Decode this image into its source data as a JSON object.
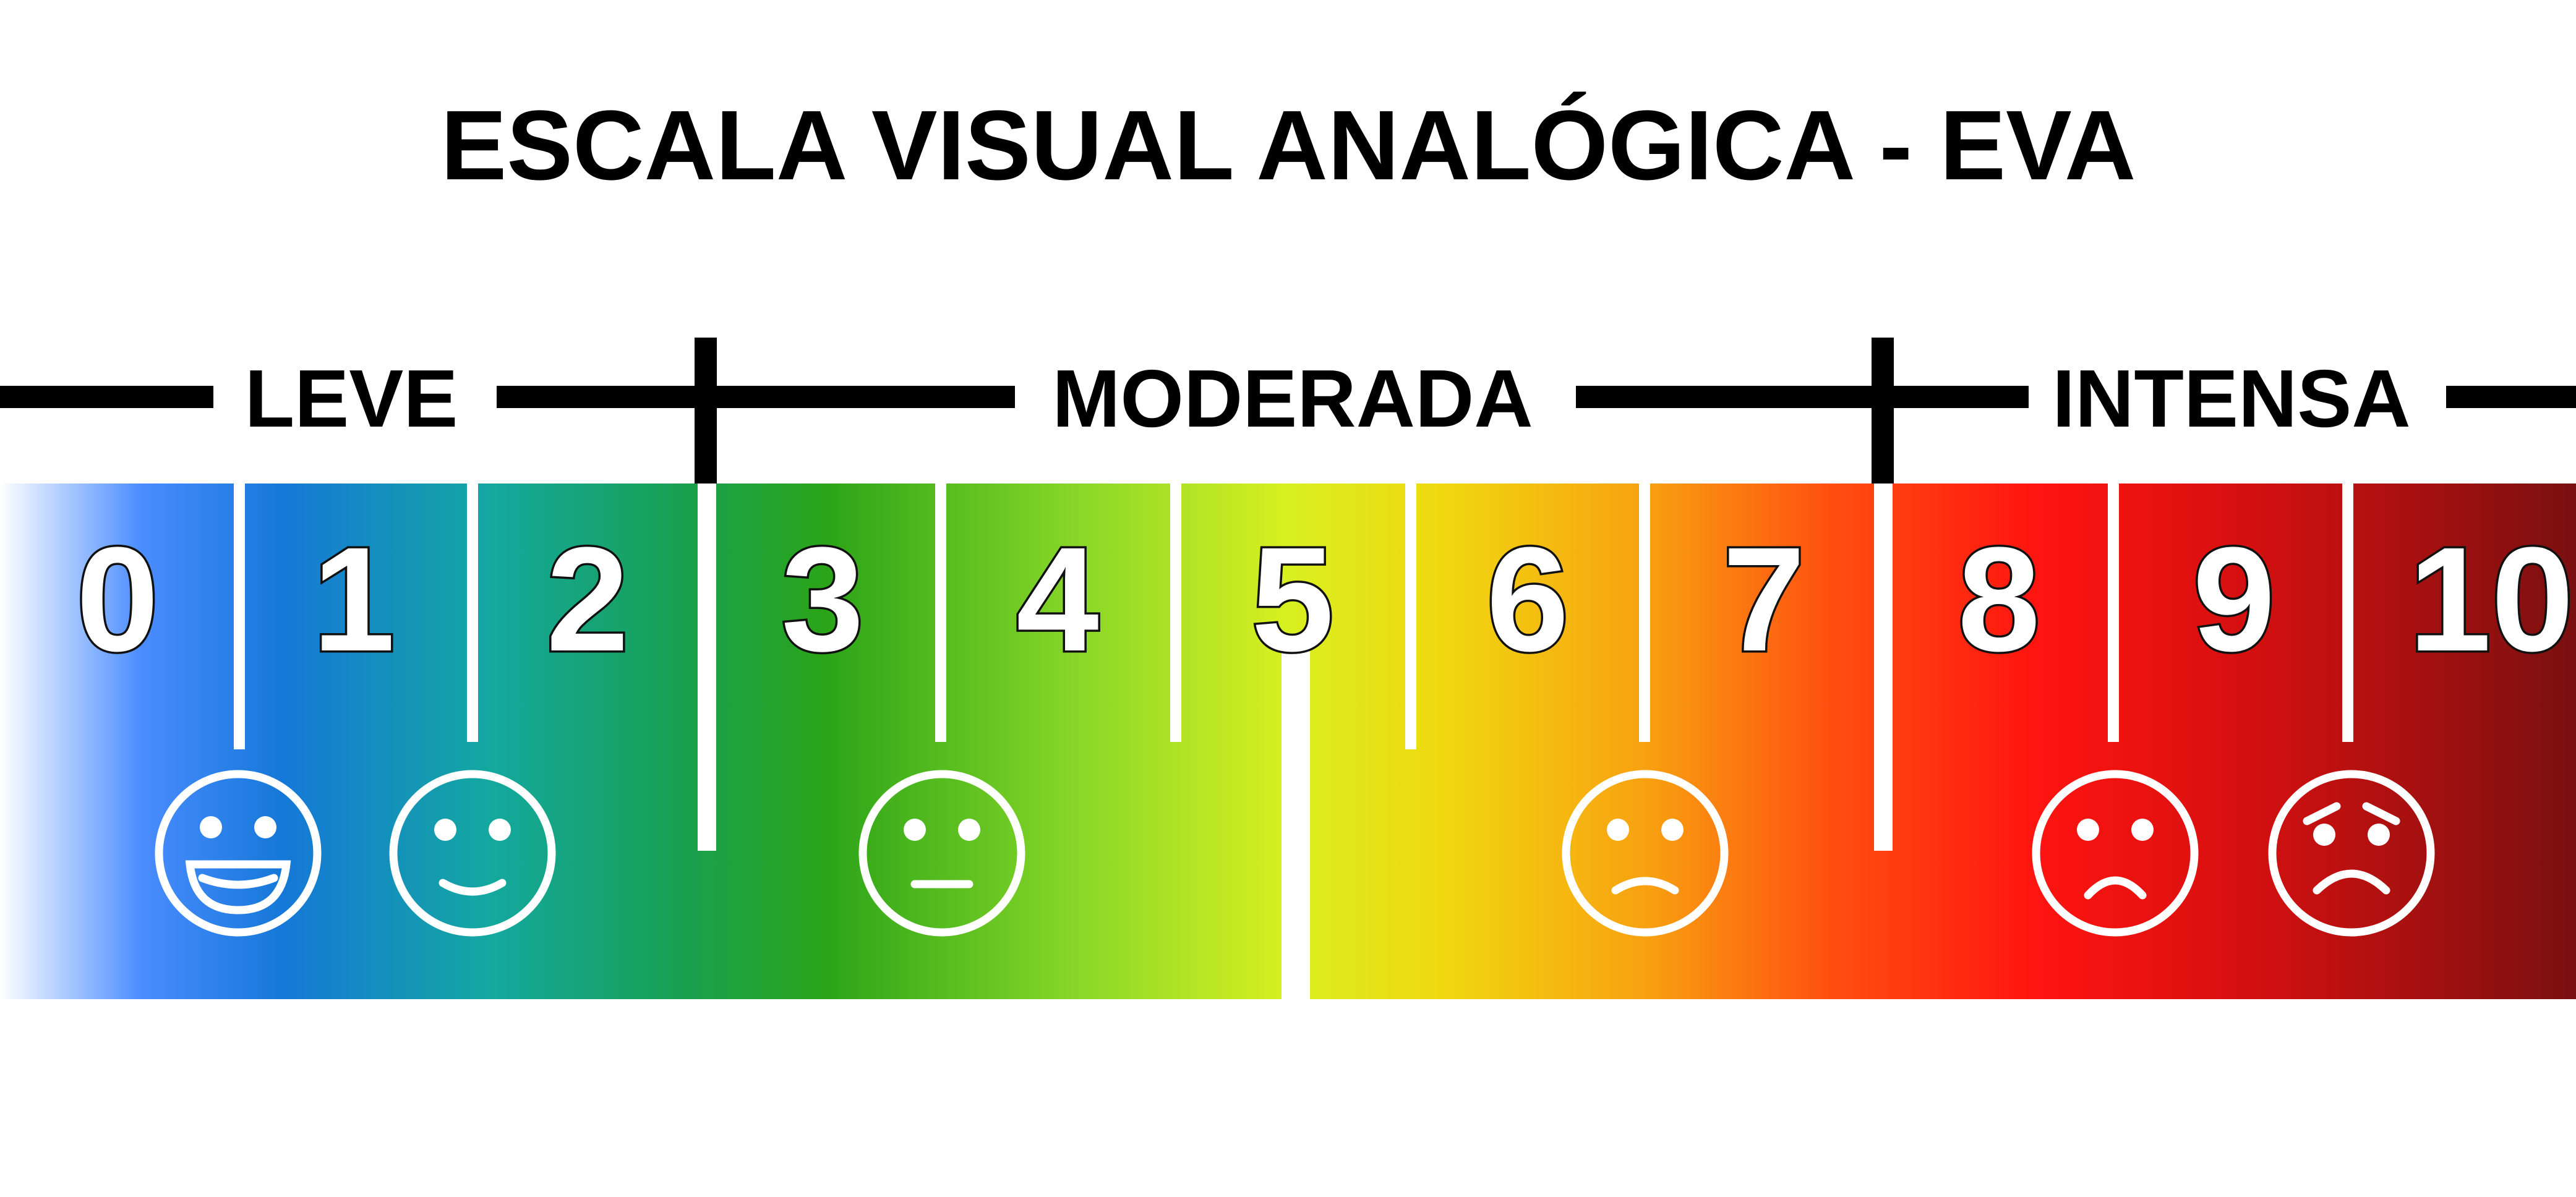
{
  "title": "ESCALA VISUAL ANALÓGICA - EVA",
  "categories": [
    {
      "label": "LEVE",
      "range": [
        0,
        2
      ]
    },
    {
      "label": "MODERADA",
      "range": [
        3,
        7
      ]
    },
    {
      "label": "INTENSA",
      "range": [
        8,
        10
      ]
    }
  ],
  "numbers": [
    "0",
    "1",
    "2",
    "3",
    "4",
    "5",
    "6",
    "7",
    "8",
    "9",
    "10"
  ],
  "faces": [
    {
      "name": "laughing-face-icon",
      "value": 0.5
    },
    {
      "name": "smiling-face-icon",
      "value": 1.5
    },
    {
      "name": "neutral-face-icon",
      "value": 3.5
    },
    {
      "name": "frowning-face-icon",
      "value": 6.5
    },
    {
      "name": "sad-face-icon",
      "value": 8.5
    },
    {
      "name": "distressed-face-icon",
      "value": 9.5
    }
  ],
  "gradient_colors": [
    "#ffffff",
    "#4a8cff",
    "#1578d8",
    "#14a8a0",
    "#18a050",
    "#2aa418",
    "#8ad828",
    "#d8f020",
    "#f0d810",
    "#f8a010",
    "#ff5010",
    "#ff1410",
    "#d01010",
    "#7a1010"
  ]
}
